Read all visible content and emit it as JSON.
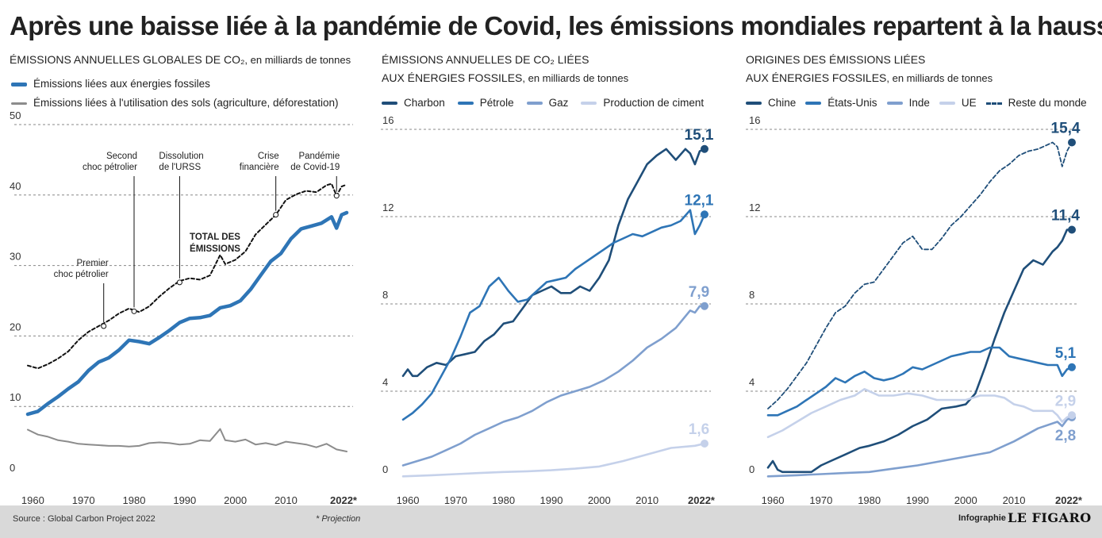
{
  "header": {
    "title": "Après une baisse liée à la pandémie de Covid, les émissions mondiales repartent à la hausse"
  },
  "panels": [
    {
      "title_line1": "ÉMISSIONS ANNUELLES GLOBALES DE CO₂",
      "title_unit": ", en milliards de tonnes",
      "title_line2": "",
      "title_line2_unit": ""
    },
    {
      "title_line1": "ÉMISSIONS ANNUELLES DE CO₂ LIÉES",
      "title_unit": "",
      "title_line2": "AUX ÉNERGIES FOSSILES",
      "title_line2_unit": ", en milliards de tonnes"
    },
    {
      "title_line1": "ORIGINES DES ÉMISSIONS LIÉES",
      "title_unit": "",
      "title_line2": "AUX ÉNERGIES FOSSILES",
      "title_line2_unit": ", en milliards de tonnes"
    }
  ],
  "footer": {
    "source": "Source : Global Carbon Project 2022",
    "projection": "* Projection",
    "infographie": "Infographie",
    "logo": "LE FIGARO"
  },
  "colors": {
    "charbon": "#1f4e79",
    "petrole": "#2e75b6",
    "gaz": "#7f9fce",
    "ciment": "#c5d1ea",
    "sols": "#8c8c8c",
    "total": "#111111"
  },
  "chart_data": [
    {
      "type": "line",
      "xlim": [
        1960,
        2022
      ],
      "ylim": [
        0,
        50
      ],
      "x_ticks": [
        "1960",
        "1970",
        "1980",
        "1990",
        "2000",
        "2010",
        "2022*"
      ],
      "y_ticks": [
        "0",
        "10",
        "20",
        "30",
        "40",
        "50"
      ],
      "legend": [
        "Émissions liées aux énergies fossiles",
        "Émissions liées à l'utilisation des sols (agriculture, déforestation)"
      ],
      "series": [
        {
          "name": "TOTAL DES ÉMISSIONS",
          "style": "dashed",
          "color": "#111111",
          "x": [
            1959,
            1961,
            1963,
            1965,
            1967,
            1969,
            1971,
            1973,
            1975,
            1977,
            1979,
            1981,
            1983,
            1985,
            1987,
            1989,
            1991,
            1993,
            1995,
            1997,
            1998,
            2000,
            2002,
            2004,
            2006,
            2008,
            2010,
            2012,
            2014,
            2016,
            2018,
            2019,
            2020,
            2021,
            2022
          ],
          "values": [
            15.8,
            15.4,
            16.0,
            16.8,
            17.8,
            19.4,
            20.6,
            21.4,
            22.2,
            23.2,
            23.9,
            23.4,
            24.2,
            25.6,
            26.8,
            27.8,
            28.2,
            28.0,
            28.6,
            31.5,
            30.2,
            30.8,
            32.0,
            34.4,
            35.8,
            37.2,
            39.3,
            40.1,
            40.6,
            40.4,
            41.4,
            41.6,
            39.9,
            41.2,
            41.5
          ]
        },
        {
          "name": "Émissions liées aux énergies fossiles",
          "color": "#2e75b6",
          "x": [
            1959,
            1961,
            1963,
            1965,
            1967,
            1969,
            1971,
            1973,
            1975,
            1977,
            1979,
            1981,
            1983,
            1985,
            1987,
            1989,
            1991,
            1993,
            1995,
            1997,
            1999,
            2001,
            2003,
            2005,
            2007,
            2009,
            2011,
            2013,
            2015,
            2017,
            2019,
            2020,
            2021,
            2022
          ],
          "values": [
            8.9,
            9.3,
            10.4,
            11.4,
            12.5,
            13.5,
            15.1,
            16.3,
            16.9,
            18.0,
            19.4,
            19.2,
            18.9,
            19.8,
            20.8,
            21.9,
            22.5,
            22.6,
            22.9,
            24.0,
            24.3,
            25.0,
            26.6,
            28.6,
            30.6,
            31.7,
            33.8,
            35.2,
            35.6,
            36.0,
            36.9,
            35.3,
            37.2,
            37.5
          ]
        },
        {
          "name": "Émissions liées à l'utilisation des sols (agriculture, déforestation)",
          "color": "#8c8c8c",
          "x": [
            1959,
            1961,
            1963,
            1965,
            1967,
            1969,
            1971,
            1973,
            1975,
            1977,
            1979,
            1981,
            1983,
            1985,
            1987,
            1989,
            1991,
            1993,
            1995,
            1997,
            1998,
            2000,
            2002,
            2004,
            2006,
            2008,
            2010,
            2012,
            2014,
            2016,
            2018,
            2020,
            2022
          ],
          "values": [
            6.7,
            6.0,
            5.7,
            5.2,
            5.0,
            4.7,
            4.6,
            4.5,
            4.4,
            4.4,
            4.3,
            4.4,
            4.8,
            4.9,
            4.8,
            4.6,
            4.7,
            5.2,
            5.1,
            6.8,
            5.2,
            5.0,
            5.3,
            4.6,
            4.8,
            4.5,
            5.0,
            4.8,
            4.6,
            4.2,
            4.7,
            3.9,
            3.6
          ]
        }
      ],
      "annotations": [
        {
          "label": "Premier choc pétrolier",
          "year": 1974,
          "value": 21.4
        },
        {
          "label": "Second choc pétrolier",
          "year": 1980,
          "value": 23.5
        },
        {
          "label": "Dissolution de l'URSS",
          "year": 1989,
          "value": 27.6
        },
        {
          "label": "Crise financière",
          "year": 2008,
          "value": 37.2
        },
        {
          "label": "Pandémie de Covid-19",
          "year": 2020,
          "value": 39.9
        }
      ],
      "total_label": "TOTAL DES ÉMISSIONS"
    },
    {
      "type": "line",
      "xlim": [
        1960,
        2022
      ],
      "ylim": [
        0,
        16
      ],
      "x_ticks": [
        "1960",
        "1970",
        "1980",
        "1990",
        "2000",
        "2010",
        "2022*"
      ],
      "y_ticks": [
        "0",
        "4",
        "8",
        "12",
        "16"
      ],
      "series": [
        {
          "name": "Charbon",
          "color": "#1f4e79",
          "end_label": "15,1",
          "x": [
            1959,
            1960,
            1961,
            1962,
            1964,
            1966,
            1968,
            1970,
            1972,
            1974,
            1976,
            1978,
            1980,
            1982,
            1984,
            1986,
            1988,
            1990,
            1992,
            1994,
            1996,
            1998,
            2000,
            2002,
            2004,
            2006,
            2008,
            2010,
            2012,
            2014,
            2016,
            2018,
            2019,
            2020,
            2021,
            2022
          ],
          "values": [
            4.7,
            5.0,
            4.7,
            4.7,
            5.1,
            5.3,
            5.2,
            5.6,
            5.7,
            5.8,
            6.3,
            6.6,
            7.1,
            7.2,
            7.8,
            8.4,
            8.6,
            8.8,
            8.5,
            8.5,
            8.8,
            8.6,
            9.2,
            10.0,
            11.6,
            12.8,
            13.6,
            14.4,
            14.8,
            15.1,
            14.6,
            15.1,
            14.9,
            14.4,
            15.0,
            15.1
          ]
        },
        {
          "name": "Pétrole",
          "color": "#2e75b6",
          "end_label": "12,1",
          "x": [
            1959,
            1961,
            1963,
            1965,
            1967,
            1969,
            1971,
            1973,
            1975,
            1977,
            1979,
            1981,
            1983,
            1985,
            1987,
            1989,
            1991,
            1993,
            1995,
            1997,
            1999,
            2001,
            2003,
            2005,
            2007,
            2009,
            2011,
            2013,
            2015,
            2017,
            2019,
            2020,
            2021,
            2022
          ],
          "values": [
            2.7,
            3.0,
            3.4,
            3.9,
            4.7,
            5.5,
            6.5,
            7.6,
            7.9,
            8.8,
            9.2,
            8.6,
            8.1,
            8.2,
            8.6,
            9.0,
            9.1,
            9.2,
            9.6,
            9.9,
            10.2,
            10.5,
            10.8,
            11.0,
            11.2,
            11.1,
            11.3,
            11.5,
            11.6,
            11.8,
            12.3,
            11.2,
            11.6,
            12.1
          ]
        },
        {
          "name": "Gaz",
          "color": "#7f9fce",
          "end_label": "7,9",
          "x": [
            1959,
            1962,
            1965,
            1968,
            1971,
            1974,
            1977,
            1980,
            1983,
            1986,
            1989,
            1992,
            1995,
            1998,
            2001,
            2004,
            2007,
            2010,
            2013,
            2016,
            2019,
            2020,
            2021,
            2022
          ],
          "values": [
            0.6,
            0.8,
            1.0,
            1.3,
            1.6,
            2.0,
            2.3,
            2.6,
            2.8,
            3.1,
            3.5,
            3.8,
            4.0,
            4.2,
            4.5,
            4.9,
            5.4,
            6.0,
            6.4,
            6.9,
            7.7,
            7.6,
            7.9,
            7.9
          ]
        },
        {
          "name": "Production de ciment",
          "color": "#c5d1ea",
          "end_label": "1,6",
          "x": [
            1959,
            1965,
            1970,
            1975,
            1980,
            1985,
            1990,
            1995,
            2000,
            2005,
            2010,
            2015,
            2020,
            2022
          ],
          "values": [
            0.1,
            0.15,
            0.2,
            0.25,
            0.3,
            0.33,
            0.38,
            0.45,
            0.55,
            0.8,
            1.1,
            1.4,
            1.5,
            1.6
          ]
        }
      ]
    },
    {
      "type": "line",
      "xlim": [
        1960,
        2022
      ],
      "ylim": [
        0,
        16
      ],
      "x_ticks": [
        "1960",
        "1970",
        "1980",
        "1990",
        "2000",
        "2010",
        "2022*"
      ],
      "y_ticks": [
        "0",
        "4",
        "8",
        "12",
        "16"
      ],
      "series": [
        {
          "name": "Chine",
          "color": "#1f4e79",
          "end_label": "11,4",
          "x": [
            1959,
            1960,
            1961,
            1962,
            1965,
            1968,
            1970,
            1972,
            1975,
            1978,
            1980,
            1983,
            1986,
            1989,
            1992,
            1995,
            1998,
            2000,
            2002,
            2004,
            2006,
            2008,
            2010,
            2012,
            2014,
            2016,
            2018,
            2019,
            2020,
            2021,
            2022
          ],
          "values": [
            0.5,
            0.8,
            0.4,
            0.3,
            0.3,
            0.3,
            0.6,
            0.8,
            1.1,
            1.4,
            1.5,
            1.7,
            2.0,
            2.4,
            2.7,
            3.2,
            3.3,
            3.4,
            3.9,
            5.1,
            6.4,
            7.6,
            8.6,
            9.6,
            10.0,
            9.8,
            10.4,
            10.6,
            10.9,
            11.4,
            11.4
          ]
        },
        {
          "name": "États-Unis",
          "color": "#2e75b6",
          "end_label": "5,1",
          "x": [
            1959,
            1961,
            1963,
            1965,
            1967,
            1969,
            1971,
            1973,
            1975,
            1977,
            1979,
            1981,
            1983,
            1985,
            1987,
            1989,
            1991,
            1993,
            1995,
            1997,
            1999,
            2001,
            2003,
            2005,
            2007,
            2009,
            2011,
            2013,
            2015,
            2017,
            2019,
            2020,
            2021,
            2022
          ],
          "values": [
            2.9,
            2.9,
            3.1,
            3.3,
            3.6,
            3.9,
            4.2,
            4.6,
            4.4,
            4.7,
            4.9,
            4.6,
            4.5,
            4.6,
            4.8,
            5.1,
            5.0,
            5.2,
            5.4,
            5.6,
            5.7,
            5.8,
            5.8,
            6.0,
            6.0,
            5.6,
            5.5,
            5.4,
            5.3,
            5.2,
            5.2,
            4.7,
            5.0,
            5.1
          ]
        },
        {
          "name": "Inde",
          "color": "#7f9fce",
          "end_label": "2,8",
          "x": [
            1959,
            1965,
            1970,
            1975,
            1980,
            1985,
            1990,
            1995,
            2000,
            2005,
            2010,
            2015,
            2019,
            2020,
            2021,
            2022
          ],
          "values": [
            0.1,
            0.15,
            0.2,
            0.25,
            0.3,
            0.45,
            0.6,
            0.8,
            1.0,
            1.2,
            1.7,
            2.3,
            2.6,
            2.4,
            2.7,
            2.8
          ]
        },
        {
          "name": "UE",
          "color": "#c5d1ea",
          "end_label": "2,9",
          "x": [
            1959,
            1962,
            1965,
            1968,
            1971,
            1974,
            1977,
            1979,
            1980,
            1982,
            1985,
            1988,
            1991,
            1994,
            1997,
            2000,
            2003,
            2006,
            2008,
            2010,
            2012,
            2014,
            2016,
            2018,
            2019,
            2020,
            2021,
            2022
          ],
          "values": [
            1.9,
            2.2,
            2.6,
            3.0,
            3.3,
            3.6,
            3.8,
            4.1,
            4.0,
            3.8,
            3.8,
            3.9,
            3.8,
            3.6,
            3.6,
            3.6,
            3.8,
            3.8,
            3.7,
            3.4,
            3.3,
            3.1,
            3.1,
            3.1,
            2.9,
            2.6,
            2.8,
            2.9
          ]
        },
        {
          "name": "Reste du monde",
          "color": "#1f4e79",
          "style": "dashed",
          "end_label": "15,4",
          "x": [
            1959,
            1961,
            1963,
            1965,
            1967,
            1969,
            1971,
            1973,
            1975,
            1977,
            1979,
            1981,
            1983,
            1985,
            1987,
            1989,
            1991,
            1993,
            1995,
            1997,
            1999,
            2001,
            2003,
            2005,
            2007,
            2009,
            2011,
            2013,
            2015,
            2017,
            2018,
            2019,
            2020,
            2021,
            2022
          ],
          "values": [
            3.2,
            3.6,
            4.1,
            4.7,
            5.3,
            6.1,
            6.9,
            7.6,
            7.9,
            8.5,
            8.9,
            9.0,
            9.6,
            10.2,
            10.8,
            11.1,
            10.5,
            10.5,
            11.0,
            11.6,
            12.0,
            12.5,
            13.0,
            13.6,
            14.1,
            14.4,
            14.8,
            15.0,
            15.1,
            15.3,
            15.4,
            15.2,
            14.3,
            15.0,
            15.4
          ]
        }
      ]
    }
  ]
}
